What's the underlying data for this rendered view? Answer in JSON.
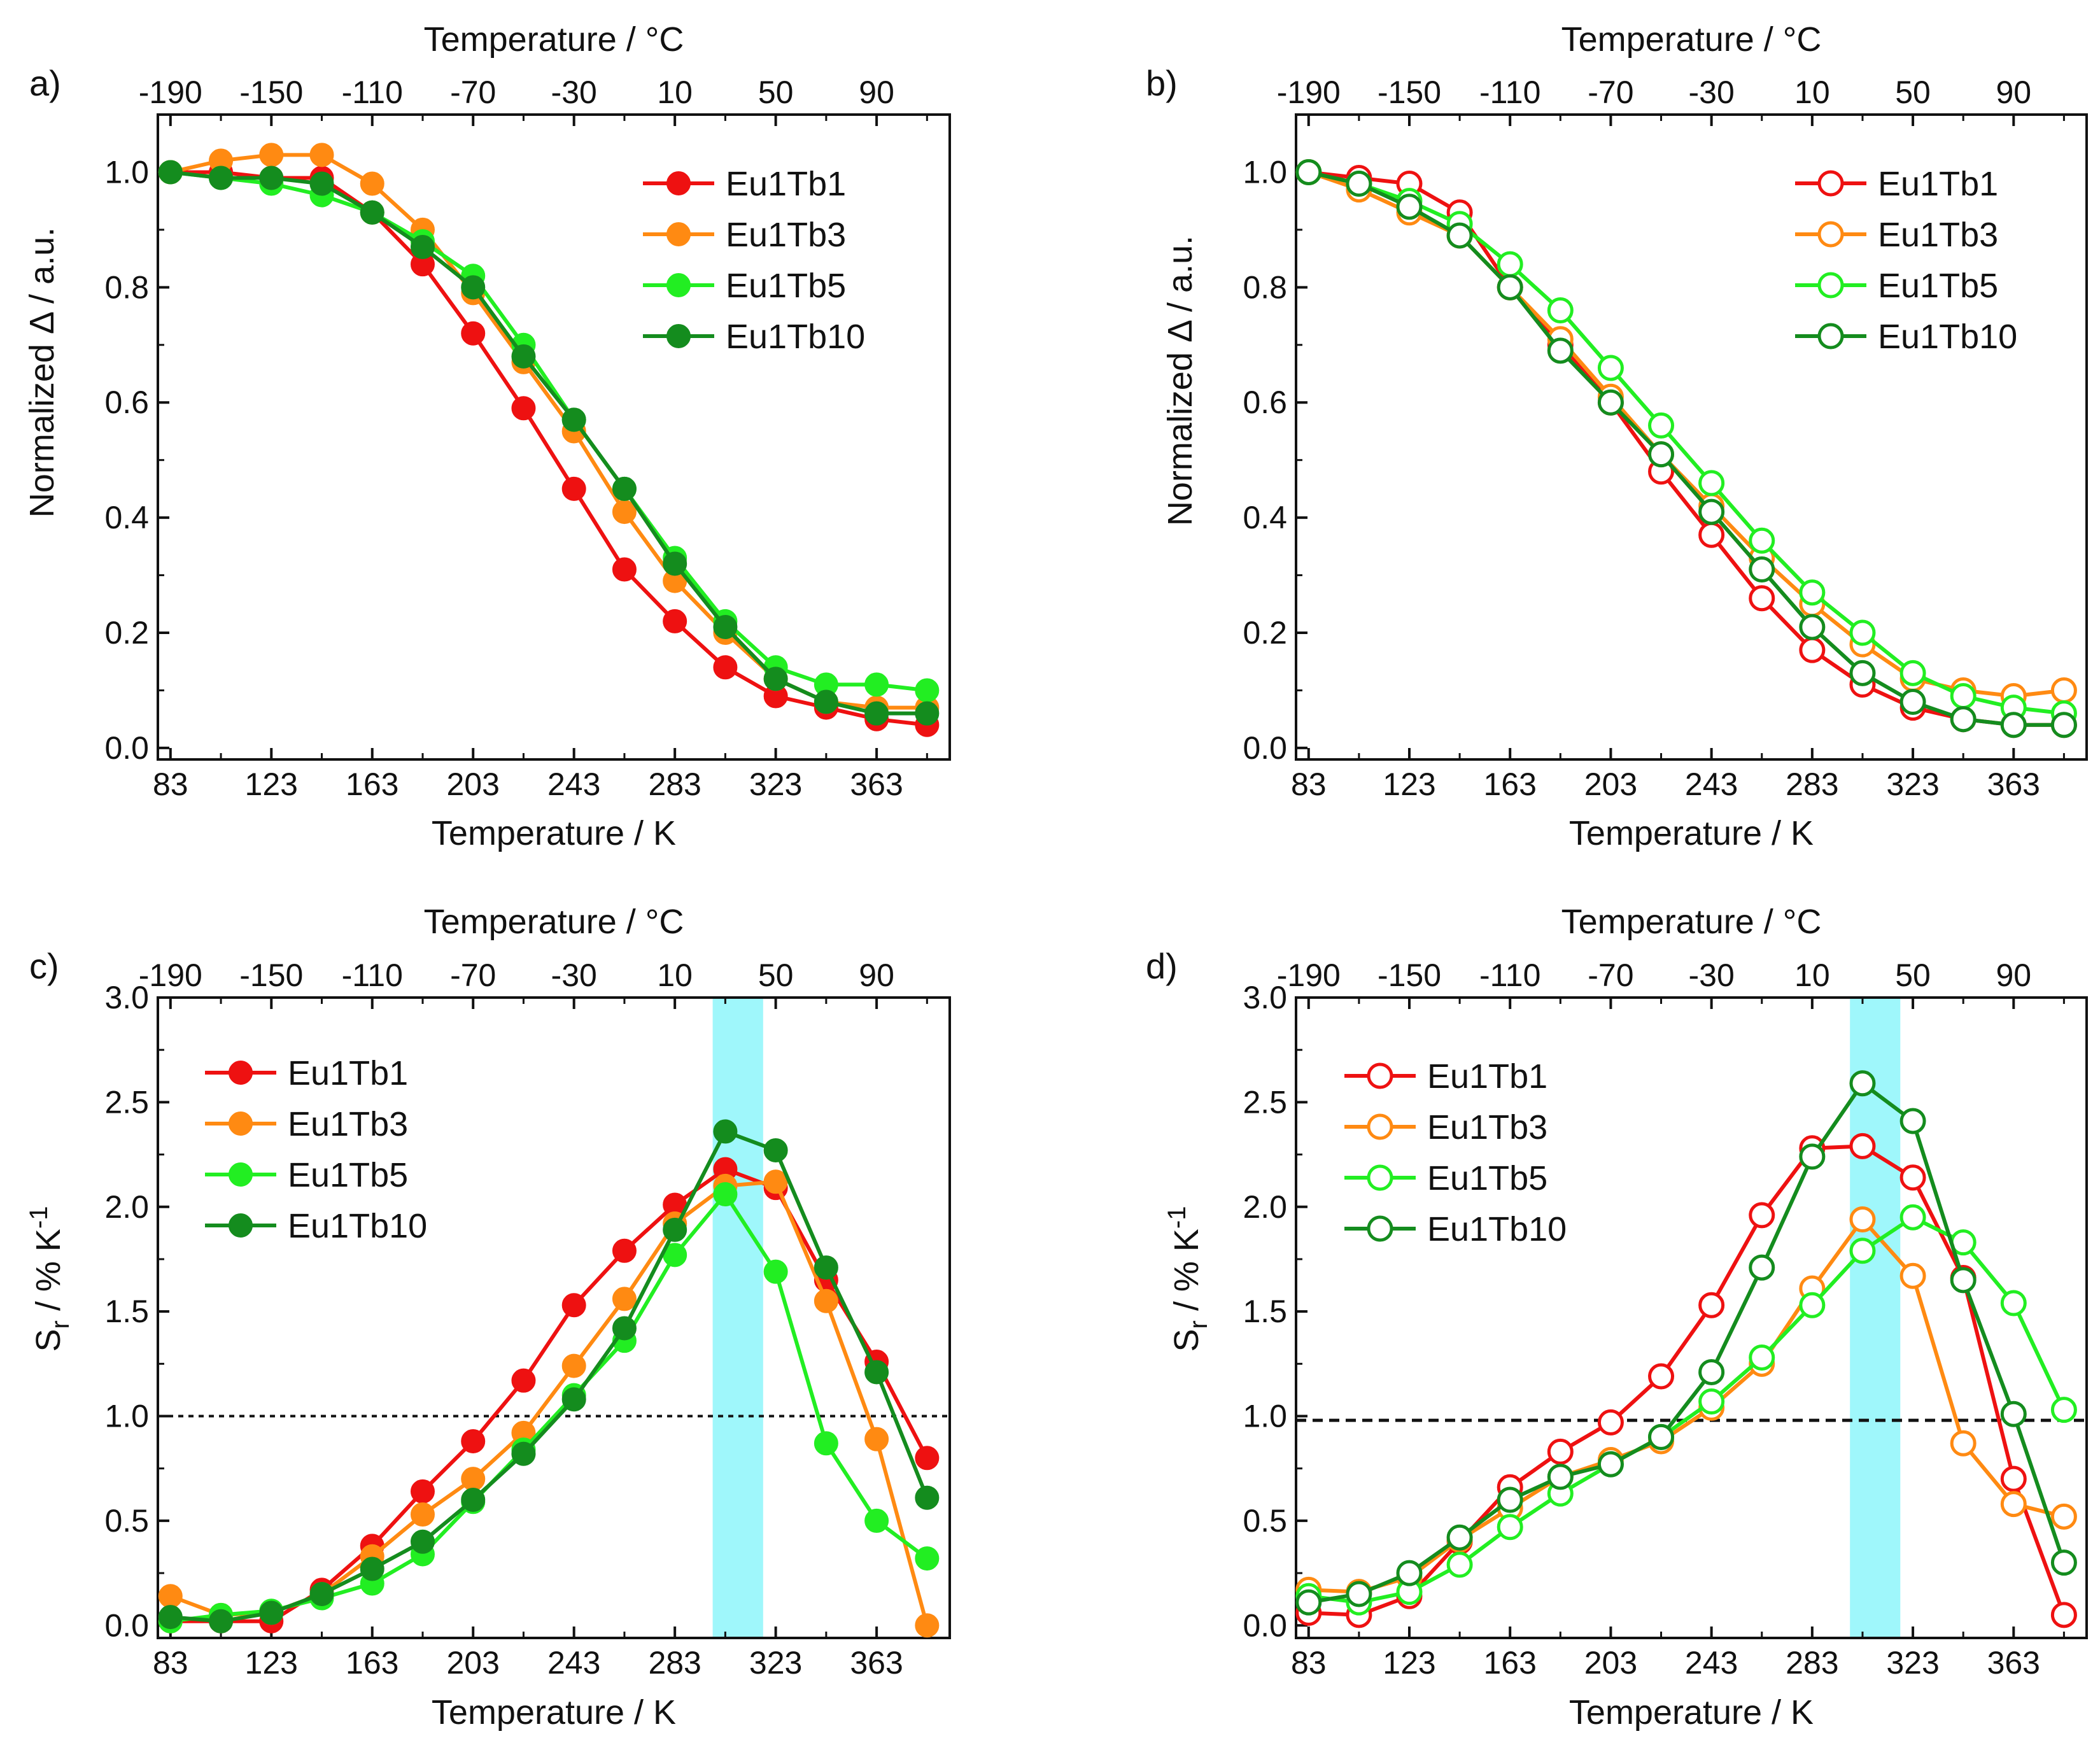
{
  "figure": {
    "top_axis_label": "Temperature / °C",
    "bottom_axis_label": "Temperature / K",
    "series_colors": {
      "Eu1Tb1": "#ee1111",
      "Eu1Tb3": "#ff8a12",
      "Eu1Tb5": "#22ee22",
      "Eu1Tb10": "#148c1e"
    },
    "highlight_color": "#9ff7fb"
  },
  "chart_data": [
    {
      "panel": "a)",
      "type": "line",
      "marker": "filled-circle",
      "title": "",
      "xlabel": "Temperature / K",
      "x2label": "Temperature / °C",
      "ylabel": "Normalized Δ / a.u.",
      "xlim": [
        78,
        392
      ],
      "ylim": [
        -0.02,
        1.1
      ],
      "xticks": [
        83,
        123,
        163,
        203,
        243,
        283,
        323,
        363
      ],
      "x2ticks": [
        -190,
        -150,
        -110,
        -70,
        -30,
        10,
        50,
        90
      ],
      "yticks": [
        "0.0",
        "0.2",
        "0.4",
        "0.6",
        "0.8",
        "1.0"
      ],
      "legend_position": "top-right",
      "x": [
        83,
        103,
        123,
        143,
        163,
        183,
        203,
        223,
        243,
        263,
        283,
        303,
        323,
        343,
        363,
        383
      ],
      "series": [
        {
          "name": "Eu1Tb1",
          "values": [
            1.0,
            1.0,
            0.99,
            0.99,
            0.93,
            0.84,
            0.72,
            0.59,
            0.45,
            0.31,
            0.22,
            0.14,
            0.09,
            0.07,
            0.05,
            0.04
          ]
        },
        {
          "name": "Eu1Tb3",
          "values": [
            1.0,
            1.02,
            1.03,
            1.03,
            0.98,
            0.9,
            0.79,
            0.67,
            0.55,
            0.41,
            0.29,
            0.2,
            0.12,
            0.08,
            0.07,
            0.07
          ]
        },
        {
          "name": "Eu1Tb5",
          "values": [
            1.0,
            0.99,
            0.98,
            0.96,
            0.93,
            0.88,
            0.82,
            0.7,
            0.57,
            0.45,
            0.33,
            0.22,
            0.14,
            0.11,
            0.11,
            0.1
          ]
        },
        {
          "name": "Eu1Tb10",
          "values": [
            1.0,
            0.99,
            0.99,
            0.98,
            0.93,
            0.87,
            0.8,
            0.68,
            0.57,
            0.45,
            0.32,
            0.21,
            0.12,
            0.08,
            0.06,
            0.06
          ]
        }
      ]
    },
    {
      "panel": "b)",
      "type": "line",
      "marker": "open-circle",
      "title": "",
      "xlabel": "Temperature / K",
      "x2label": "Temperature / °C",
      "ylabel": "Normalized Δ / a.u.",
      "xlim": [
        78,
        392
      ],
      "ylim": [
        -0.02,
        1.1
      ],
      "xticks": [
        83,
        123,
        163,
        203,
        243,
        283,
        323,
        363
      ],
      "x2ticks": [
        -190,
        -150,
        -110,
        -70,
        -30,
        10,
        50,
        90
      ],
      "yticks": [
        "0.0",
        "0.2",
        "0.4",
        "0.6",
        "0.8",
        "1.0"
      ],
      "legend_position": "top-right",
      "x": [
        83,
        103,
        123,
        143,
        163,
        183,
        203,
        223,
        243,
        263,
        283,
        303,
        323,
        343,
        363,
        383
      ],
      "series": [
        {
          "name": "Eu1Tb1",
          "values": [
            1.0,
            0.99,
            0.98,
            0.93,
            0.8,
            0.7,
            0.6,
            0.48,
            0.37,
            0.26,
            0.17,
            0.11,
            0.07,
            0.05,
            0.04,
            0.04
          ]
        },
        {
          "name": "Eu1Tb3",
          "values": [
            1.0,
            0.97,
            0.93,
            0.89,
            0.8,
            0.71,
            0.61,
            0.51,
            0.42,
            0.33,
            0.25,
            0.18,
            0.12,
            0.1,
            0.09,
            0.1
          ]
        },
        {
          "name": "Eu1Tb5",
          "values": [
            1.0,
            0.98,
            0.95,
            0.91,
            0.84,
            0.76,
            0.66,
            0.56,
            0.46,
            0.36,
            0.27,
            0.2,
            0.13,
            0.09,
            0.07,
            0.06
          ]
        },
        {
          "name": "Eu1Tb10",
          "values": [
            1.0,
            0.98,
            0.94,
            0.89,
            0.8,
            0.69,
            0.6,
            0.51,
            0.41,
            0.31,
            0.21,
            0.13,
            0.08,
            0.05,
            0.04,
            0.04
          ]
        }
      ]
    },
    {
      "panel": "c)",
      "type": "line",
      "marker": "filled-circle",
      "title": "",
      "xlabel": "Temperature / K",
      "x2label": "Temperature / °C",
      "ylabel": "Sr / % K-1",
      "xlim": [
        78,
        392
      ],
      "ylim": [
        -0.06,
        3.0
      ],
      "xticks": [
        83,
        123,
        163,
        203,
        243,
        283,
        323,
        363
      ],
      "x2ticks": [
        -190,
        -150,
        -110,
        -70,
        -30,
        10,
        50,
        90
      ],
      "yticks": [
        "0.0",
        "0.5",
        "1.0",
        "1.5",
        "2.0",
        "2.5",
        "3.0"
      ],
      "legend_position": "top-left",
      "reference_line_y": 1.0,
      "highlight_x_range": [
        298,
        318
      ],
      "x": [
        83,
        103,
        123,
        143,
        163,
        183,
        203,
        223,
        243,
        263,
        283,
        303,
        323,
        343,
        363,
        383
      ],
      "series": [
        {
          "name": "Eu1Tb1",
          "values": [
            0.02,
            0.02,
            0.02,
            0.17,
            0.38,
            0.64,
            0.88,
            1.17,
            1.53,
            1.79,
            2.01,
            2.18,
            2.09,
            1.65,
            1.26,
            0.8
          ]
        },
        {
          "name": "Eu1Tb3",
          "values": [
            0.14,
            0.05,
            0.06,
            0.15,
            0.33,
            0.53,
            0.7,
            0.92,
            1.24,
            1.56,
            1.92,
            2.1,
            2.12,
            1.55,
            0.89,
            0.0
          ]
        },
        {
          "name": "Eu1Tb5",
          "values": [
            0.02,
            0.05,
            0.07,
            0.13,
            0.2,
            0.34,
            0.59,
            0.84,
            1.1,
            1.36,
            1.77,
            2.06,
            1.69,
            0.87,
            0.5,
            0.32
          ]
        },
        {
          "name": "Eu1Tb10",
          "values": [
            0.04,
            0.02,
            0.06,
            0.15,
            0.27,
            0.4,
            0.6,
            0.82,
            1.08,
            1.42,
            1.89,
            2.36,
            2.27,
            1.71,
            1.21,
            0.61
          ]
        }
      ]
    },
    {
      "panel": "d)",
      "type": "line",
      "marker": "open-circle",
      "title": "",
      "xlabel": "Temperature / K",
      "x2label": "Temperature / °C",
      "ylabel": "Sr / % K-1",
      "xlim": [
        78,
        392
      ],
      "ylim": [
        -0.06,
        3.0
      ],
      "xticks": [
        83,
        123,
        163,
        203,
        243,
        283,
        323,
        363
      ],
      "x2ticks": [
        -190,
        -150,
        -110,
        -70,
        -30,
        10,
        50,
        90
      ],
      "yticks": [
        "0.0",
        "0.5",
        "1.0",
        "1.5",
        "2.0",
        "2.5",
        "3.0"
      ],
      "legend_position": "top-left",
      "reference_line_y": 0.98,
      "highlight_x_range": [
        298,
        318
      ],
      "x": [
        83,
        103,
        123,
        143,
        163,
        183,
        203,
        223,
        243,
        263,
        283,
        303,
        323,
        343,
        363,
        383
      ],
      "series": [
        {
          "name": "Eu1Tb1",
          "values": [
            0.06,
            0.05,
            0.14,
            0.4,
            0.66,
            0.83,
            0.97,
            1.19,
            1.53,
            1.96,
            2.28,
            2.29,
            2.14,
            1.66,
            0.7,
            0.05
          ]
        },
        {
          "name": "Eu1Tb3",
          "values": [
            0.17,
            0.16,
            0.23,
            0.41,
            0.56,
            0.71,
            0.79,
            0.88,
            1.04,
            1.25,
            1.61,
            1.94,
            1.67,
            0.87,
            0.58,
            0.52
          ]
        },
        {
          "name": "Eu1Tb5",
          "values": [
            0.14,
            0.11,
            0.16,
            0.29,
            0.47,
            0.63,
            0.77,
            0.9,
            1.07,
            1.28,
            1.53,
            1.79,
            1.95,
            1.83,
            1.54,
            1.03
          ]
        },
        {
          "name": "Eu1Tb10",
          "values": [
            0.11,
            0.15,
            0.25,
            0.42,
            0.6,
            0.71,
            0.77,
            0.9,
            1.21,
            1.71,
            2.24,
            2.59,
            2.41,
            1.65,
            1.01,
            0.3
          ]
        }
      ]
    }
  ]
}
